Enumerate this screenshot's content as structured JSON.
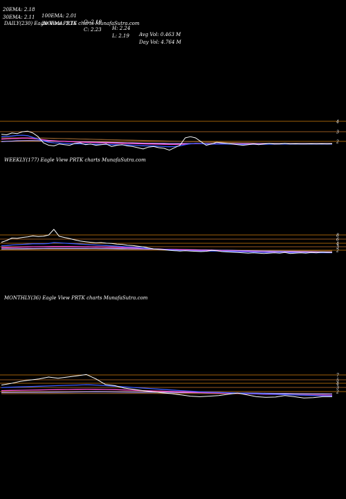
{
  "header": {
    "row1": [
      "20EMA: 2.18",
      "100EMA: 2.01",
      "O: 2.19",
      "H: 2.24",
      "Avg Vol: 0.463 M"
    ],
    "row2": [
      "30EMA: 2.11",
      "200EMA: 2.16",
      "C: 2.23",
      "L: 2.19",
      "Day Vol: 4.764 M"
    ]
  },
  "chart_data": [
    {
      "type": "line",
      "title": "DAILY(230) Eagle View PRTK charts MunafaSutra.com",
      "y_ticks": [
        "4",
        "3",
        "2"
      ],
      "ylim": [
        1.0,
        4.5
      ],
      "series": [
        {
          "color": "#ffffff",
          "values": [
            2.6,
            2.55,
            2.7,
            2.65,
            2.8,
            2.85,
            2.7,
            2.4,
            1.9,
            1.7,
            1.65,
            1.8,
            1.75,
            1.7,
            1.85,
            1.9,
            1.75,
            1.8,
            1.7,
            1.75,
            1.8,
            1.6,
            1.7,
            1.75,
            1.65,
            1.6,
            1.5,
            1.4,
            1.55,
            1.6,
            1.5,
            1.45,
            1.3,
            1.5,
            1.7,
            2.3,
            2.4,
            2.3,
            2.0,
            1.7,
            1.8,
            1.95,
            1.9,
            1.85,
            1.8,
            1.75,
            1.7,
            1.75,
            1.8,
            1.75,
            1.8,
            1.85,
            1.8,
            1.8,
            1.85,
            1.8,
            1.82,
            1.8,
            1.8,
            1.82,
            1.8,
            1.82,
            1.8,
            1.82
          ]
        },
        {
          "color": "#3a5bff",
          "values": [
            2.4,
            2.42,
            2.45,
            2.5,
            2.52,
            2.48,
            2.35,
            2.2,
            2.05,
            1.95,
            1.9,
            1.88,
            1.85,
            1.83,
            1.82,
            1.82,
            1.8,
            1.79,
            1.78,
            1.77,
            1.76,
            1.75,
            1.74,
            1.73,
            1.72,
            1.7,
            1.68,
            1.66,
            1.65,
            1.64,
            1.62,
            1.6,
            1.58,
            1.6,
            1.65,
            1.75,
            1.82,
            1.85,
            1.84,
            1.8,
            1.79,
            1.8,
            1.8,
            1.8,
            1.79,
            1.78,
            1.77,
            1.77,
            1.78,
            1.78,
            1.78,
            1.79,
            1.79,
            1.8,
            1.8,
            1.8,
            1.8,
            1.8,
            1.8,
            1.8,
            1.8,
            1.8,
            1.8,
            1.8
          ]
        },
        {
          "color": "#ff4fd8",
          "values": [
            2.2,
            2.22,
            2.24,
            2.26,
            2.28,
            2.28,
            2.25,
            2.2,
            2.15,
            2.1,
            2.07,
            2.04,
            2.02,
            2.0,
            1.98,
            1.96,
            1.94,
            1.93,
            1.92,
            1.9,
            1.89,
            1.88,
            1.87,
            1.86,
            1.85,
            1.84,
            1.83,
            1.82,
            1.81,
            1.8,
            1.79,
            1.78,
            1.77,
            1.77,
            1.78,
            1.8,
            1.82,
            1.83,
            1.83,
            1.82,
            1.82,
            1.82,
            1.82,
            1.81,
            1.81,
            1.81,
            1.8,
            1.8,
            1.8,
            1.8,
            1.8,
            1.8,
            1.8,
            1.8,
            1.8,
            1.8,
            1.8,
            1.8,
            1.8,
            1.8,
            1.8,
            1.8,
            1.8,
            1.8
          ]
        },
        {
          "color": "#b7a5ff",
          "values": [
            2.0,
            2.02,
            2.04,
            2.06,
            2.07,
            2.08,
            2.08,
            2.07,
            2.06,
            2.05,
            2.04,
            2.03,
            2.02,
            2.01,
            2.0,
            1.99,
            1.98,
            1.97,
            1.96,
            1.95,
            1.94,
            1.93,
            1.92,
            1.91,
            1.9,
            1.89,
            1.88,
            1.87,
            1.86,
            1.86,
            1.85,
            1.85,
            1.84,
            1.84,
            1.84,
            1.84,
            1.84,
            1.84,
            1.84,
            1.84,
            1.84,
            1.83,
            1.83,
            1.83,
            1.83,
            1.83,
            1.83,
            1.83,
            1.83,
            1.83,
            1.83,
            1.83,
            1.83,
            1.83,
            1.83,
            1.83,
            1.83,
            1.83,
            1.83,
            1.83,
            1.83,
            1.83,
            1.83,
            1.83
          ]
        },
        {
          "color": "#8a5a2a",
          "values": [
            2.3,
            2.3,
            2.3,
            2.3,
            2.3,
            2.3,
            2.3,
            2.29,
            2.28,
            2.27,
            2.26,
            2.25,
            2.24,
            2.23,
            2.22,
            2.21,
            2.2,
            2.19,
            2.18,
            2.17,
            2.16,
            2.15,
            2.14,
            2.13,
            2.12,
            2.11,
            2.1,
            2.09,
            2.08,
            2.07,
            2.06,
            2.05,
            2.04,
            2.03,
            2.02,
            2.01,
            2.0,
            1.99,
            1.98,
            1.97,
            1.96,
            1.95,
            1.94,
            1.93,
            1.92,
            1.91,
            1.9,
            1.89,
            1.88,
            1.87,
            1.86,
            1.85,
            1.85,
            1.85,
            1.85,
            1.85,
            1.85,
            1.85,
            1.85,
            1.85,
            1.85,
            1.85,
            1.85,
            1.85
          ]
        }
      ]
    },
    {
      "type": "line",
      "title": "WEEKLY(177) Eagle View PRTK charts MunafaSutra.com",
      "y_ticks": [
        "8",
        "6",
        "4",
        "3",
        "2"
      ],
      "ylim": [
        0.5,
        12
      ],
      "series": [
        {
          "color": "#ffffff",
          "values": [
            5.2,
            5.8,
            6.6,
            6.5,
            6.8,
            7.0,
            7.3,
            7.1,
            7.2,
            7.6,
            9.5,
            7.2,
            6.8,
            6.4,
            6.0,
            5.6,
            5.4,
            5.2,
            5.0,
            5.1,
            4.9,
            4.8,
            4.6,
            4.5,
            4.2,
            4.1,
            3.9,
            3.7,
            3.3,
            3.0,
            2.9,
            2.7,
            2.5,
            2.4,
            2.3,
            2.4,
            2.3,
            2.2,
            2.1,
            2.2,
            2.5,
            2.4,
            2.1,
            2.0,
            1.9,
            1.8,
            1.7,
            1.6,
            1.7,
            1.6,
            1.5,
            1.6,
            1.7,
            1.6,
            1.8,
            1.5,
            1.6,
            1.7,
            1.6,
            1.8,
            1.7,
            1.9,
            1.8,
            1.8
          ]
        },
        {
          "color": "#3a5bff",
          "values": [
            4.0,
            4.1,
            4.3,
            4.4,
            4.5,
            4.6,
            4.7,
            4.7,
            4.7,
            4.8,
            5.1,
            5.0,
            4.9,
            4.8,
            4.7,
            4.6,
            4.5,
            4.4,
            4.3,
            4.2,
            4.1,
            4.0,
            3.9,
            3.8,
            3.7,
            3.6,
            3.5,
            3.3,
            3.2,
            3.0,
            2.9,
            2.8,
            2.7,
            2.6,
            2.5,
            2.45,
            2.4,
            2.35,
            2.3,
            2.3,
            2.3,
            2.3,
            2.25,
            2.2,
            2.15,
            2.1,
            2.05,
            2.0,
            1.95,
            1.9,
            1.85,
            1.8,
            1.8,
            1.8,
            1.8,
            1.75,
            1.75,
            1.75,
            1.75,
            1.75,
            1.75,
            1.75,
            1.75,
            1.75
          ]
        },
        {
          "color": "#ff4fd8",
          "values": [
            3.4,
            3.45,
            3.5,
            3.55,
            3.6,
            3.65,
            3.7,
            3.72,
            3.74,
            3.76,
            3.8,
            3.8,
            3.8,
            3.78,
            3.76,
            3.74,
            3.72,
            3.7,
            3.66,
            3.62,
            3.58,
            3.54,
            3.5,
            3.45,
            3.4,
            3.35,
            3.3,
            3.2,
            3.1,
            3.0,
            2.95,
            2.9,
            2.85,
            2.8,
            2.75,
            2.7,
            2.65,
            2.6,
            2.55,
            2.5,
            2.5,
            2.45,
            2.4,
            2.35,
            2.3,
            2.25,
            2.2,
            2.15,
            2.1,
            2.05,
            2.0,
            1.95,
            1.95,
            1.9,
            1.9,
            1.88,
            1.86,
            1.85,
            1.84,
            1.83,
            1.82,
            1.81,
            1.8,
            1.8
          ]
        },
        {
          "color": "#b7a5ff",
          "values": [
            3.0,
            3.02,
            3.04,
            3.06,
            3.08,
            3.1,
            3.12,
            3.14,
            3.16,
            3.18,
            3.2,
            3.2,
            3.2,
            3.2,
            3.2,
            3.19,
            3.18,
            3.17,
            3.16,
            3.15,
            3.14,
            3.12,
            3.1,
            3.08,
            3.06,
            3.04,
            3.02,
            3.0,
            2.97,
            2.94,
            2.91,
            2.88,
            2.85,
            2.82,
            2.79,
            2.76,
            2.73,
            2.7,
            2.67,
            2.64,
            2.61,
            2.58,
            2.55,
            2.52,
            2.49,
            2.46,
            2.43,
            2.4,
            2.37,
            2.34,
            2.31,
            2.28,
            2.25,
            2.22,
            2.19,
            2.16,
            2.13,
            2.1,
            2.07,
            2.04,
            2.01,
            1.98,
            1.95,
            1.93
          ]
        },
        {
          "color": "#8a5a2a",
          "values": [
            2.7,
            2.71,
            2.72,
            2.73,
            2.74,
            2.75,
            2.76,
            2.77,
            2.78,
            2.79,
            2.8,
            2.8,
            2.8,
            2.8,
            2.8,
            2.8,
            2.79,
            2.78,
            2.77,
            2.76,
            2.75,
            2.74,
            2.73,
            2.72,
            2.71,
            2.7,
            2.69,
            2.68,
            2.67,
            2.66,
            2.65,
            2.64,
            2.63,
            2.62,
            2.61,
            2.6,
            2.59,
            2.58,
            2.57,
            2.56,
            2.55,
            2.54,
            2.53,
            2.52,
            2.51,
            2.5,
            2.49,
            2.48,
            2.47,
            2.46,
            2.45,
            2.44,
            2.43,
            2.42,
            2.41,
            2.4,
            2.39,
            2.38,
            2.37,
            2.36,
            2.35,
            2.34,
            2.33,
            2.32
          ]
        }
      ]
    },
    {
      "type": "line",
      "title": "MONTHLY(36) Eagle View PRTK charts MunafaSutra.com",
      "y_ticks": [
        "7",
        "5",
        "4",
        "3",
        "2"
      ],
      "ylim": [
        0.5,
        14
      ],
      "series": [
        {
          "color": "#ffffff",
          "values": [
            6.0,
            6.5,
            7.2,
            7.6,
            8.0,
            8.6,
            8.2,
            8.6,
            9.0,
            9.4,
            8.0,
            6.2,
            5.8,
            5.0,
            4.6,
            4.2,
            3.8,
            3.5,
            3.2,
            2.8,
            2.4,
            2.2,
            2.4,
            2.6,
            3.0,
            3.4,
            2.8,
            2.2,
            2.0,
            2.1,
            2.6,
            2.2,
            1.8,
            1.9,
            2.2,
            2.2
          ]
        },
        {
          "color": "#3a5bff",
          "values": [
            5.2,
            5.3,
            5.4,
            5.5,
            5.6,
            5.7,
            5.8,
            5.9,
            6.0,
            6.1,
            6.0,
            5.8,
            5.6,
            5.4,
            5.2,
            5.0,
            4.8,
            4.6,
            4.4,
            4.2,
            4.0,
            3.8,
            3.7,
            3.6,
            3.5,
            3.4,
            3.3,
            3.2,
            3.1,
            3.0,
            2.9,
            2.8,
            2.7,
            2.6,
            2.5,
            2.45
          ]
        },
        {
          "color": "#ff4fd8",
          "values": [
            4.2,
            4.25,
            4.3,
            4.35,
            4.4,
            4.45,
            4.5,
            4.55,
            4.6,
            4.65,
            4.6,
            4.55,
            4.5,
            4.4,
            4.3,
            4.2,
            4.1,
            4.0,
            3.9,
            3.8,
            3.7,
            3.6,
            3.5,
            3.4,
            3.35,
            3.3,
            3.2,
            3.1,
            3.0,
            2.95,
            2.9,
            2.85,
            2.8,
            2.75,
            2.7,
            2.65
          ]
        },
        {
          "color": "#b7a5ff",
          "values": [
            3.6,
            3.62,
            3.64,
            3.66,
            3.68,
            3.7,
            3.72,
            3.74,
            3.76,
            3.78,
            3.8,
            3.78,
            3.76,
            3.74,
            3.72,
            3.7,
            3.68,
            3.65,
            3.62,
            3.59,
            3.56,
            3.53,
            3.5,
            3.47,
            3.44,
            3.41,
            3.38,
            3.35,
            3.32,
            3.29,
            3.26,
            3.23,
            3.2,
            3.17,
            3.14,
            3.11
          ]
        },
        {
          "color": "#8a5a2a",
          "values": [
            3.2,
            3.21,
            3.22,
            3.23,
            3.24,
            3.25,
            3.26,
            3.27,
            3.28,
            3.29,
            3.3,
            3.3,
            3.3,
            3.3,
            3.3,
            3.29,
            3.28,
            3.27,
            3.26,
            3.25,
            3.24,
            3.23,
            3.22,
            3.21,
            3.2,
            3.19,
            3.18,
            3.17,
            3.16,
            3.15,
            3.14,
            3.13,
            3.12,
            3.11,
            3.1,
            3.09
          ]
        }
      ]
    }
  ]
}
